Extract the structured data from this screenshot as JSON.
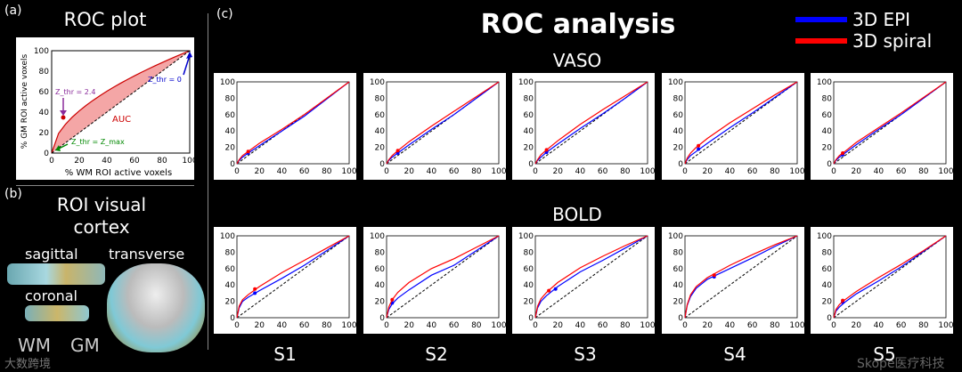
{
  "panel_labels": {
    "a": "(a)",
    "b": "(b)",
    "c": "(c)"
  },
  "roc_plot": {
    "title": "ROC plot",
    "xlabel": "% WM ROI active voxels",
    "ylabel": "% GM ROI active voxels",
    "auc_label": "AUC",
    "zthr_24_label": "Z_thr = 2.4",
    "zthr_0_label": "Z_thr = 0",
    "zthr_max_label": "Z_thr = Z_max",
    "ticks": [
      0,
      20,
      40,
      60,
      80,
      100
    ]
  },
  "roi": {
    "title_line1": "ROI visual",
    "title_line2": "cortex",
    "sagittal": "sagittal",
    "transverse": "transverse",
    "coronal": "coronal",
    "wm_label": "WM",
    "gm_label": "GM"
  },
  "main_title": "ROC analysis",
  "legend": [
    {
      "name": "3D EPI",
      "color": "#0000ff"
    },
    {
      "name": "3D spiral",
      "color": "#ff0000"
    }
  ],
  "row_titles": {
    "vaso": "VASO",
    "bold": "BOLD"
  },
  "subjects": [
    "S1",
    "S2",
    "S3",
    "S4",
    "S5"
  ],
  "watermark_left": "大数跨境",
  "watermark_right": "Skope医疗科技",
  "chart_data": [
    {
      "type": "line",
      "xlim": [
        0,
        100
      ],
      "ylim": [
        0,
        100
      ],
      "ticks": [
        0,
        20,
        40,
        60,
        80,
        100
      ],
      "panel": "VASO S1",
      "series": [
        {
          "name": "3D EPI",
          "color": "#0000ff",
          "x": [
            0,
            2,
            5,
            10,
            20,
            40,
            60,
            80,
            100
          ],
          "y": [
            0,
            4,
            8,
            13,
            22,
            40,
            58,
            79,
            100
          ],
          "marker": [
            10,
            13
          ]
        },
        {
          "name": "3D spiral",
          "color": "#ff0000",
          "x": [
            0,
            2,
            5,
            10,
            20,
            40,
            60,
            80,
            100
          ],
          "y": [
            0,
            5,
            10,
            15,
            25,
            42,
            60,
            80,
            100
          ],
          "marker": [
            10,
            15
          ]
        }
      ]
    },
    {
      "type": "line",
      "xlim": [
        0,
        100
      ],
      "ylim": [
        0,
        100
      ],
      "ticks": [
        0,
        20,
        40,
        60,
        80,
        100
      ],
      "panel": "VASO S2",
      "series": [
        {
          "name": "3D EPI",
          "color": "#0000ff",
          "x": [
            0,
            2,
            5,
            10,
            20,
            40,
            60,
            80,
            100
          ],
          "y": [
            0,
            4,
            8,
            13,
            23,
            42,
            60,
            80,
            100
          ],
          "marker": [
            10,
            13
          ]
        },
        {
          "name": "3D spiral",
          "color": "#ff0000",
          "x": [
            0,
            2,
            5,
            10,
            20,
            40,
            60,
            80,
            100
          ],
          "y": [
            0,
            5,
            10,
            16,
            27,
            46,
            64,
            82,
            100
          ],
          "marker": [
            10,
            16
          ]
        }
      ]
    },
    {
      "type": "line",
      "xlim": [
        0,
        100
      ],
      "ylim": [
        0,
        100
      ],
      "ticks": [
        0,
        20,
        40,
        60,
        80,
        100
      ],
      "panel": "VASO S3",
      "series": [
        {
          "name": "3D EPI",
          "color": "#0000ff",
          "x": [
            0,
            2,
            5,
            10,
            20,
            40,
            60,
            80,
            100
          ],
          "y": [
            0,
            4,
            8,
            14,
            24,
            43,
            61,
            80,
            100
          ],
          "marker": [
            10,
            14
          ]
        },
        {
          "name": "3D spiral",
          "color": "#ff0000",
          "x": [
            0,
            2,
            5,
            10,
            20,
            40,
            60,
            80,
            100
          ],
          "y": [
            0,
            5,
            11,
            17,
            28,
            48,
            66,
            83,
            100
          ],
          "marker": [
            10,
            17
          ]
        }
      ]
    },
    {
      "type": "line",
      "xlim": [
        0,
        100
      ],
      "ylim": [
        0,
        100
      ],
      "ticks": [
        0,
        20,
        40,
        60,
        80,
        100
      ],
      "panel": "VASO S4",
      "series": [
        {
          "name": "3D EPI",
          "color": "#0000ff",
          "x": [
            0,
            2,
            5,
            10,
            20,
            40,
            60,
            80,
            100
          ],
          "y": [
            0,
            5,
            10,
            15,
            25,
            44,
            62,
            81,
            100
          ],
          "marker": [
            12,
            18
          ]
        },
        {
          "name": "3D spiral",
          "color": "#ff0000",
          "x": [
            0,
            2,
            5,
            10,
            20,
            40,
            60,
            80,
            100
          ],
          "y": [
            0,
            7,
            13,
            20,
            31,
            50,
            67,
            84,
            100
          ],
          "marker": [
            12,
            22
          ]
        }
      ]
    },
    {
      "type": "line",
      "xlim": [
        0,
        100
      ],
      "ylim": [
        0,
        100
      ],
      "ticks": [
        0,
        20,
        40,
        60,
        80,
        100
      ],
      "panel": "VASO S5",
      "series": [
        {
          "name": "3D EPI",
          "color": "#0000ff",
          "x": [
            0,
            2,
            5,
            10,
            20,
            40,
            60,
            80,
            100
          ],
          "y": [
            0,
            4,
            8,
            13,
            23,
            42,
            60,
            80,
            100
          ],
          "marker": [
            8,
            11
          ]
        },
        {
          "name": "3D spiral",
          "color": "#ff0000",
          "x": [
            0,
            2,
            5,
            10,
            20,
            40,
            60,
            80,
            100
          ],
          "y": [
            0,
            5,
            10,
            15,
            26,
            44,
            62,
            81,
            100
          ],
          "marker": [
            8,
            13
          ]
        }
      ]
    },
    {
      "type": "line",
      "xlim": [
        0,
        100
      ],
      "ylim": [
        0,
        100
      ],
      "ticks": [
        0,
        20,
        40,
        60,
        80,
        100
      ],
      "panel": "BOLD S1",
      "series": [
        {
          "name": "3D EPI",
          "color": "#0000ff",
          "x": [
            0,
            2,
            5,
            10,
            20,
            40,
            60,
            80,
            100
          ],
          "y": [
            0,
            12,
            20,
            25,
            33,
            48,
            64,
            82,
            100
          ],
          "marker": [
            16,
            30
          ]
        },
        {
          "name": "3D spiral",
          "color": "#ff0000",
          "x": [
            0,
            2,
            5,
            10,
            20,
            40,
            60,
            80,
            100
          ],
          "y": [
            0,
            14,
            22,
            28,
            38,
            55,
            70,
            85,
            100
          ],
          "marker": [
            16,
            35
          ]
        }
      ]
    },
    {
      "type": "line",
      "xlim": [
        0,
        100
      ],
      "ylim": [
        0,
        100
      ],
      "ticks": [
        0,
        20,
        40,
        60,
        80,
        100
      ],
      "panel": "BOLD S2",
      "series": [
        {
          "name": "3D EPI",
          "color": "#0000ff",
          "x": [
            0,
            2,
            5,
            10,
            20,
            40,
            60,
            80,
            100
          ],
          "y": [
            0,
            10,
            17,
            24,
            34,
            52,
            64,
            82,
            100
          ],
          "marker": [
            5,
            18
          ]
        },
        {
          "name": "3D spiral",
          "color": "#ff0000",
          "x": [
            0,
            2,
            5,
            10,
            20,
            40,
            60,
            80,
            100
          ],
          "y": [
            0,
            13,
            22,
            31,
            43,
            60,
            72,
            86,
            100
          ],
          "marker": [
            5,
            22
          ]
        }
      ]
    },
    {
      "type": "line",
      "xlim": [
        0,
        100
      ],
      "ylim": [
        0,
        100
      ],
      "ticks": [
        0,
        20,
        40,
        60,
        80,
        100
      ],
      "panel": "BOLD S3",
      "series": [
        {
          "name": "3D EPI",
          "color": "#0000ff",
          "x": [
            0,
            2,
            5,
            10,
            20,
            40,
            60,
            80,
            100
          ],
          "y": [
            0,
            12,
            20,
            27,
            38,
            56,
            70,
            85,
            100
          ],
          "marker": [
            18,
            35
          ]
        },
        {
          "name": "3D spiral",
          "color": "#ff0000",
          "x": [
            0,
            2,
            5,
            10,
            20,
            40,
            60,
            80,
            100
          ],
          "y": [
            0,
            14,
            23,
            31,
            43,
            61,
            75,
            88,
            100
          ],
          "marker": [
            12,
            33
          ]
        }
      ]
    },
    {
      "type": "line",
      "xlim": [
        0,
        100
      ],
      "ylim": [
        0,
        100
      ],
      "ticks": [
        0,
        20,
        40,
        60,
        80,
        100
      ],
      "panel": "BOLD S4",
      "series": [
        {
          "name": "3D EPI",
          "color": "#0000ff",
          "x": [
            0,
            2,
            5,
            10,
            20,
            40,
            60,
            80,
            100
          ],
          "y": [
            0,
            15,
            26,
            36,
            47,
            60,
            73,
            87,
            100
          ],
          "marker": [
            26,
            50
          ]
        },
        {
          "name": "3D spiral",
          "color": "#ff0000",
          "x": [
            0,
            2,
            5,
            10,
            20,
            40,
            60,
            80,
            100
          ],
          "y": [
            0,
            16,
            28,
            38,
            49,
            64,
            77,
            89,
            100
          ],
          "marker": [
            26,
            52
          ]
        }
      ]
    },
    {
      "type": "line",
      "xlim": [
        0,
        100
      ],
      "ylim": [
        0,
        100
      ],
      "ticks": [
        0,
        20,
        40,
        60,
        80,
        100
      ],
      "panel": "BOLD S5",
      "series": [
        {
          "name": "3D EPI",
          "color": "#0000ff",
          "x": [
            0,
            2,
            5,
            10,
            20,
            40,
            60,
            80,
            100
          ],
          "y": [
            0,
            8,
            13,
            19,
            29,
            45,
            62,
            81,
            100
          ],
          "marker": [
            8,
            19
          ]
        },
        {
          "name": "3D spiral",
          "color": "#ff0000",
          "x": [
            0,
            2,
            5,
            10,
            20,
            40,
            60,
            80,
            100
          ],
          "y": [
            0,
            10,
            16,
            22,
            32,
            49,
            65,
            82,
            100
          ],
          "marker": [
            8,
            21
          ]
        }
      ]
    }
  ]
}
